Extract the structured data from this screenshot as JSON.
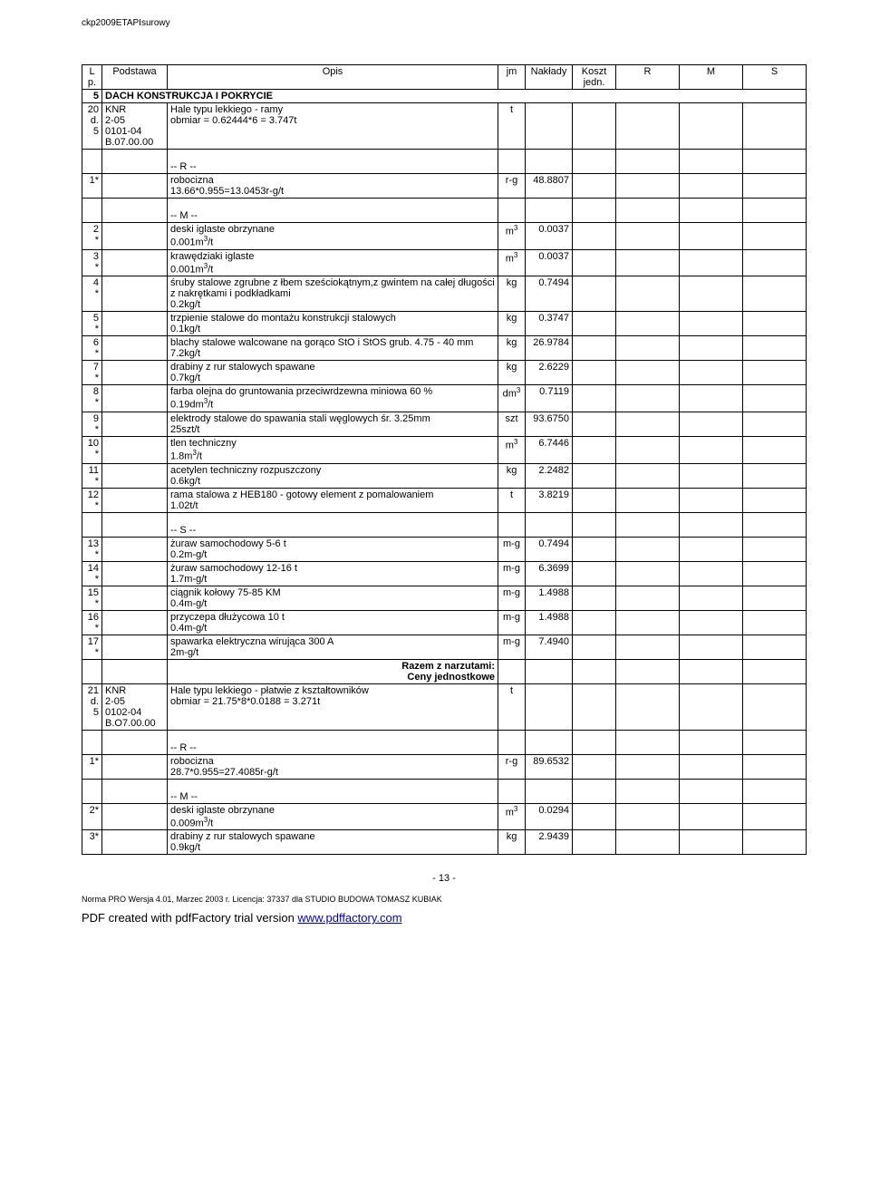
{
  "doc_header": "ckp2009ETAPIsurowy",
  "columns": {
    "lp": "L p.",
    "podstawa": "Podstawa",
    "opis": "Opis",
    "jm": "jm",
    "naklady": "Nakłady",
    "koszt": "Koszt jedn.",
    "r": "R",
    "m": "M",
    "s": "S"
  },
  "section": {
    "num": "5",
    "title": "DACH KONSTRUKCJA I POKRYCIE"
  },
  "item20": {
    "lp": "20 d.5",
    "pod": "KNR 2-05 0101-04 B.07.00.00",
    "opis": "Hale typu lekkiego - ramy\nobmiar = 0.62444*6 = 3.747t",
    "jm": "t"
  },
  "r_header": "-- R --",
  "m_header": "-- M --",
  "s_header": "-- S --",
  "r20": {
    "lp": "1*",
    "opis": "robocizna\n13.66*0.955=13.0453r-g/t",
    "jm": "r-g",
    "val": "48.8807"
  },
  "m20": [
    {
      "lp": "2*",
      "opis": "deski iglaste obrzynane\n0.001m³/t",
      "jm": "m³",
      "val": "0.0037"
    },
    {
      "lp": "3*",
      "opis": "krawędziaki iglaste\n0.001m³/t",
      "jm": "m³",
      "val": "0.0037"
    },
    {
      "lp": "4*",
      "opis": "śruby stalowe zgrubne z łbem sześciokątnym,z gwintem na całej długości z nakrętkami i podkładkami\n0.2kg/t",
      "jm": "kg",
      "val": "0.7494"
    },
    {
      "lp": "5*",
      "opis": "trzpienie stalowe do montażu konstrukcji stalowych\n0.1kg/t",
      "jm": "kg",
      "val": "0.3747"
    },
    {
      "lp": "6*",
      "opis": "blachy stalowe walcowane na gorąco StO i StOS grub. 4.75 - 40 mm\n7.2kg/t",
      "jm": "kg",
      "val": "26.9784"
    },
    {
      "lp": "7*",
      "opis": "drabiny z rur stalowych spawane\n0.7kg/t",
      "jm": "kg",
      "val": "2.6229"
    },
    {
      "lp": "8*",
      "opis": "farba olejna do gruntowania przeciwrdzewna miniowa 60 %\n0.19dm³/t",
      "jm": "dm³",
      "val": "0.7119"
    },
    {
      "lp": "9*",
      "opis": "elektrody stalowe do spawania stali węglowych śr. 3.25mm\n25szt/t",
      "jm": "szt",
      "val": "93.6750"
    },
    {
      "lp": "10*",
      "opis": "tlen techniczny\n1.8m³/t",
      "jm": "m³",
      "val": "6.7446"
    },
    {
      "lp": "11*",
      "opis": "acetylen techniczny rozpuszczony\n0.6kg/t",
      "jm": "kg",
      "val": "2.2482"
    },
    {
      "lp": "12*",
      "opis": "rama stalowa z HEB180 - gotowy element z pomalowaniem\n1.02t/t",
      "jm": "t",
      "val": "3.8219"
    }
  ],
  "s20": [
    {
      "lp": "13*",
      "opis": "żuraw samochodowy 5-6 t\n0.2m-g/t",
      "jm": "m-g",
      "val": "0.7494"
    },
    {
      "lp": "14*",
      "opis": "żuraw samochodowy 12-16 t\n1.7m-g/t",
      "jm": "m-g",
      "val": "6.3699"
    },
    {
      "lp": "15*",
      "opis": "ciągnik kołowy 75-85 KM\n0.4m-g/t",
      "jm": "m-g",
      "val": "1.4988"
    },
    {
      "lp": "16*",
      "opis": "przyczepa dłużycowa 10 t\n0.4m-g/t",
      "jm": "m-g",
      "val": "1.4988"
    },
    {
      "lp": "17*",
      "opis": "spawarka elektryczna wirująca 300 A\n2m-g/t",
      "jm": "m-g",
      "val": "7.4940"
    }
  ],
  "razem": "Razem z narzutami:\nCeny jednostkowe",
  "item21": {
    "lp": "21 d.5",
    "pod": "KNR 2-05 0102-04 B.O7.00.00",
    "opis": "Hale typu lekkiego - płatwie z kształtowników\nobmiar = 21.75*8*0.0188 = 3.271t",
    "jm": "t"
  },
  "r21": {
    "lp": "1*",
    "opis": "robocizna\n28.7*0.955=27.4085r-g/t",
    "jm": "r-g",
    "val": "89.6532"
  },
  "m21": [
    {
      "lp": "2*",
      "opis": "deski iglaste obrzynane\n0.009m³/t",
      "jm": "m³",
      "val": "0.0294"
    },
    {
      "lp": "3*",
      "opis": "drabiny z rur stalowych spawane\n0.9kg/t",
      "jm": "kg",
      "val": "2.9439"
    }
  ],
  "page_num": "- 13 -",
  "footer": "Norma PRO Wersja 4.01, Marzec 2003 r. Licencja: 37337 dla STUDIO BUDOWA TOMASZ KUBIAK",
  "pdf_text": "PDF created with pdfFactory trial version ",
  "pdf_link": "www.pdffactory.com"
}
